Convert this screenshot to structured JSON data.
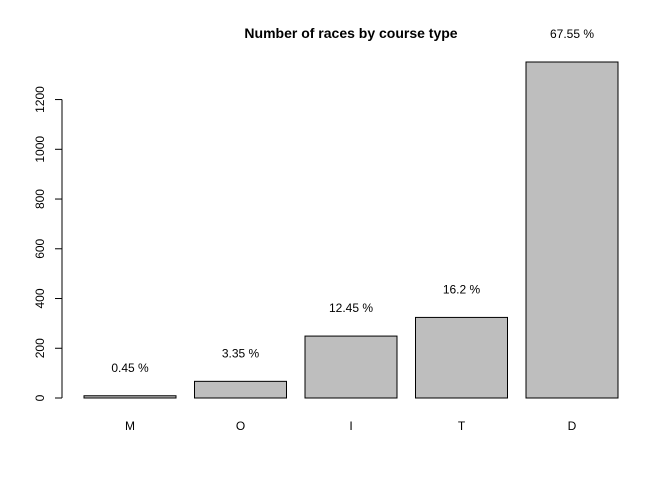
{
  "chart_data": {
    "type": "bar",
    "title": "Number of races by course type",
    "xlabel": "",
    "ylabel": "",
    "categories": [
      "M",
      "O",
      "I",
      "T",
      "D"
    ],
    "values": [
      9,
      67,
      249,
      324,
      1351
    ],
    "data_labels": [
      "0.45 %",
      "3.35 %",
      "12.45 %",
      "16.2 %",
      "67.55 %"
    ],
    "yticks": [
      0,
      200,
      400,
      600,
      800,
      1000,
      1200
    ],
    "ylim": [
      0,
      1351
    ],
    "grid": false,
    "legend": "none",
    "colors": {
      "bar_fill": "#bebebe",
      "bar_stroke": "#000000",
      "axis": "#000000"
    }
  }
}
